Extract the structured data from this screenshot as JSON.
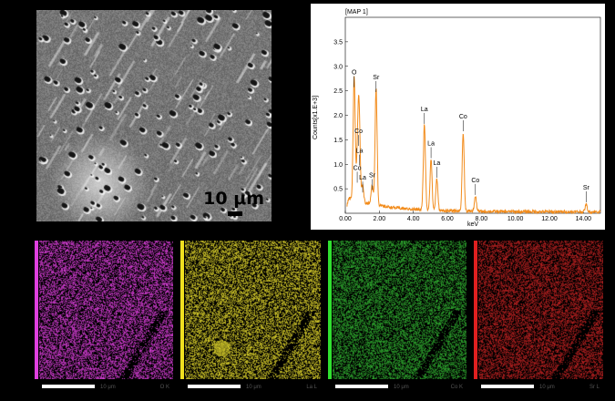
{
  "sem": {
    "scale_label": "10 μm"
  },
  "chart_data": {
    "type": "line",
    "title": "[MAP 1]",
    "xlabel": "keV",
    "ylabel": "Counts[x1.E+3]",
    "xlim": [
      0,
      15
    ],
    "ylim": [
      0,
      4.0
    ],
    "x_ticks": [
      "0.00",
      "2.00",
      "4.00",
      "6.00",
      "8.00",
      "10.00",
      "12.00",
      "14.00"
    ],
    "y_ticks": [
      "0.5",
      "1.0",
      "1.5",
      "2.0",
      "2.5",
      "3.0",
      "3.5"
    ],
    "color": "#f28c1c",
    "peaks": [
      {
        "label": "O",
        "x": 0.52,
        "y": 2.5
      },
      {
        "label": "Co",
        "x": 0.78,
        "y": 1.3
      },
      {
        "label": "La",
        "x": 0.83,
        "y": 0.9
      },
      {
        "label": "Co",
        "x": 0.7,
        "y": 0.55
      },
      {
        "label": "La",
        "x": 1.02,
        "y": 0.35
      },
      {
        "label": "Sr",
        "x": 1.58,
        "y": 0.4
      },
      {
        "label": "Sr",
        "x": 1.81,
        "y": 2.4
      },
      {
        "label": "La",
        "x": 4.65,
        "y": 1.75
      },
      {
        "label": "La",
        "x": 5.04,
        "y": 1.05
      },
      {
        "label": "La",
        "x": 5.38,
        "y": 0.65
      },
      {
        "label": "Co",
        "x": 6.93,
        "y": 1.6
      },
      {
        "label": "Co",
        "x": 7.65,
        "y": 0.3
      },
      {
        "label": "Sr",
        "x": 14.16,
        "y": 0.15
      }
    ]
  },
  "maps": [
    {
      "color": "#d23cd2",
      "stripe": "#e040e0",
      "scale_text": "10 μm",
      "element": "O K"
    },
    {
      "color": "#d6cc2a",
      "stripe": "#f0e020",
      "scale_text": "10 μm",
      "element": "La L"
    },
    {
      "color": "#2ea82e",
      "stripe": "#30e030",
      "scale_text": "10 μm",
      "element": "Co K"
    },
    {
      "color": "#b82020",
      "stripe": "#e02020",
      "scale_text": "10 μm",
      "element": "Sr L"
    }
  ]
}
